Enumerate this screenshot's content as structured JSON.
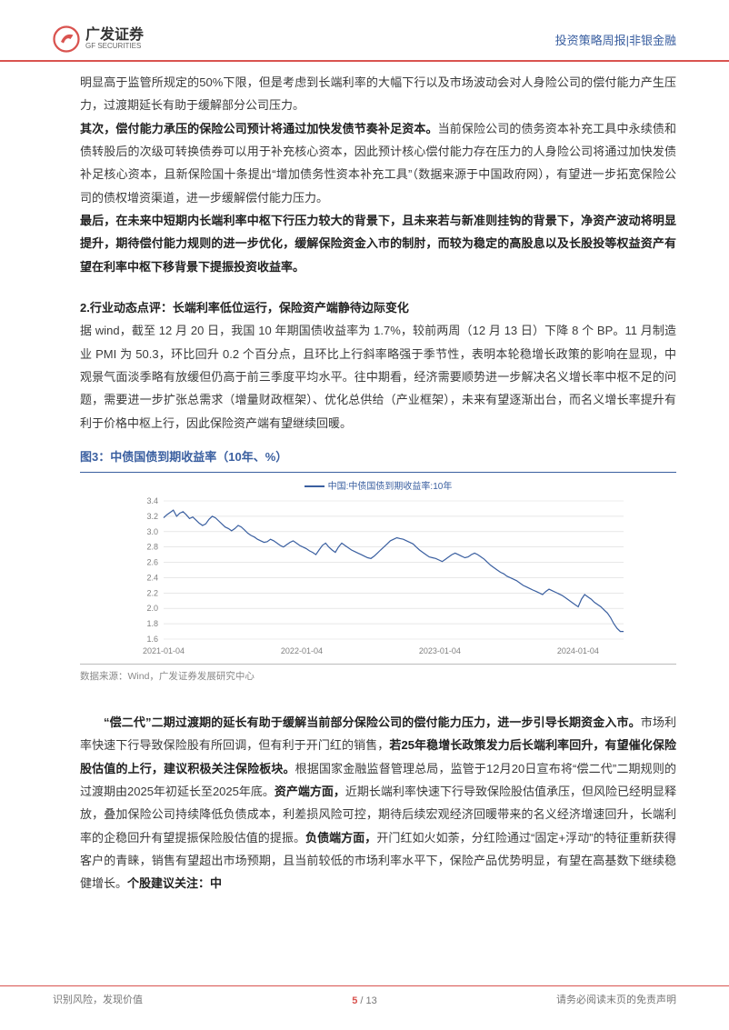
{
  "header": {
    "logo_cn": "广发证券",
    "logo_en": "GF SECURITIES",
    "right_text": "投资策略周报|非银金融"
  },
  "body": {
    "p1": "明显高于监管所规定的50%下限，但是考虑到长端利率的大幅下行以及市场波动会对人身险公司的偿付能力产生压力，过渡期延长有助于缓解部分公司压力。",
    "p2_bold": "其次，偿付能力承压的保险公司预计将通过加快发债节奏补足资本。",
    "p2_rest": "当前保险公司的债务资本补充工具中永续债和债转股后的次级可转换债券可以用于补充核心资本，因此预计核心偿付能力存在压力的人身险公司将通过加快发债补足核心资本，且新保险国十条提出“增加债务性资本补充工具”（数据来源于中国政府网），有望进一步拓宽保险公司的债权增资渠道，进一步缓解偿付能力压力。",
    "p3": "最后，在未来中短期内长端利率中枢下行压力较大的背景下，且未来若与新准则挂钩的背景下，净资产波动将明显提升，期待偿付能力规则的进一步优化，缓解保险资金入市的制肘，而较为稳定的高股息以及长股投等权益资产有望在利率中枢下移背景下提振投资收益率。",
    "sec2_title": "2.行业动态点评：长端利率低位运行，保险资产端静待边际变化",
    "p4": "据 wind，截至 12 月 20 日，我国 10 年期国债收益率为 1.7%，较前两周（12 月 13 日）下降 8 个 BP。11 月制造业 PMI 为 50.3，环比回升 0.2 个百分点，且环比上行斜率略强于季节性，表明本轮稳增长政策的影响在显现，中观景气面淡季略有放缓但仍高于前三季度平均水平。往中期看，经济需要顺势进一步解决名义增长率中枢不足的问题，需要进一步扩张总需求（增量财政框架）、优化总供给（产业框架），未来有望逐渐出台，而名义增长率提升有利于价格中枢上行，因此保险资产端有望继续回暖。",
    "fig3_title": "图3：中债国债到期收益率（10年、%）",
    "fig3_source": "数据来源：Wind，广发证券发展研究中心",
    "p5a_bold": "“偿二代”二期过渡期的延长有助于缓解当前部分保险公司的偿付能力压力，进一步引导长期资金入市。",
    "p5a_rest": "市场利率快速下行导致保险股有所回调，但有利于开门红的销售，",
    "p5b_bold": "若25年稳增长政策发力后长端利率回升，有望催化保险股估值的上行，建议积极关注保险板块。",
    "p5b_rest": "根据国家金融监督管理总局，监管于12月20日宣布将“偿二代”二期规则的过渡期由2025年初延长至2025年底。",
    "p5c_bold": "资产端方面，",
    "p5c_rest": "近期长端利率快速下行导致保险股估值承压，但风险已经明显释放，叠加保险公司持续降低负债成本，利差损风险可控，期待后续宏观经济回暖带来的名义经济增速回升，长端利率的企稳回升有望提振保险股估值的提振。",
    "p5d_bold": "负债端方面，",
    "p5d_rest": "开门红如火如荼，分红险通过“固定+浮动”的特征重新获得客户的青睐，销售有望超出市场预期，且当前较低的市场利率水平下，保险产品优势明显，有望在高基数下继续稳健增长。",
    "p5e_bold": "个股建议关注：中"
  },
  "chart": {
    "type": "line",
    "legend_label": "中国:中债国债到期收益率:10年",
    "line_color": "#3a5fa0",
    "grid_color": "#d9d9d9",
    "axis_color": "#d9d9d9",
    "text_color": "#808080",
    "background_color": "#ffffff",
    "ylim": [
      1.6,
      3.4
    ],
    "ytick_step": 0.2,
    "yticks": [
      "1.6",
      "1.8",
      "2.0",
      "2.2",
      "2.4",
      "2.6",
      "2.8",
      "3.0",
      "3.2",
      "3.4"
    ],
    "xticks": [
      "2021-01-04",
      "2022-01-04",
      "2023-01-04",
      "2024-01-04"
    ],
    "label_fontsize": 9,
    "line_width": 1.2,
    "series": [
      3.18,
      3.22,
      3.25,
      3.28,
      3.2,
      3.24,
      3.26,
      3.22,
      3.17,
      3.19,
      3.15,
      3.11,
      3.08,
      3.1,
      3.16,
      3.2,
      3.18,
      3.14,
      3.1,
      3.06,
      3.04,
      3.01,
      3.04,
      3.08,
      3.06,
      3.02,
      2.98,
      2.95,
      2.93,
      2.9,
      2.88,
      2.86,
      2.87,
      2.9,
      2.88,
      2.85,
      2.82,
      2.8,
      2.83,
      2.86,
      2.88,
      2.85,
      2.82,
      2.8,
      2.78,
      2.75,
      2.73,
      2.7,
      2.76,
      2.82,
      2.85,
      2.8,
      2.76,
      2.73,
      2.8,
      2.85,
      2.82,
      2.79,
      2.76,
      2.74,
      2.72,
      2.7,
      2.68,
      2.66,
      2.65,
      2.68,
      2.72,
      2.76,
      2.8,
      2.84,
      2.88,
      2.9,
      2.92,
      2.91,
      2.9,
      2.88,
      2.86,
      2.84,
      2.8,
      2.76,
      2.73,
      2.7,
      2.67,
      2.66,
      2.65,
      2.63,
      2.61,
      2.64,
      2.67,
      2.7,
      2.72,
      2.7,
      2.68,
      2.66,
      2.67,
      2.7,
      2.72,
      2.7,
      2.67,
      2.64,
      2.6,
      2.56,
      2.53,
      2.5,
      2.47,
      2.45,
      2.42,
      2.4,
      2.38,
      2.36,
      2.33,
      2.3,
      2.28,
      2.26,
      2.24,
      2.22,
      2.2,
      2.18,
      2.22,
      2.25,
      2.23,
      2.21,
      2.19,
      2.17,
      2.14,
      2.11,
      2.08,
      2.05,
      2.02,
      2.12,
      2.18,
      2.15,
      2.12,
      2.08,
      2.05,
      2.02,
      1.98,
      1.94,
      1.88,
      1.8,
      1.74,
      1.7,
      1.7
    ]
  },
  "footer": {
    "left": "识别风险，发现价值",
    "right": "请务必阅读末页的免责声明",
    "page_current": "5",
    "page_sep": "/",
    "page_total": "13"
  },
  "colors": {
    "brand_red": "#d9534f",
    "brand_blue": "#3a5fa0",
    "text": "#3a3a3a"
  }
}
